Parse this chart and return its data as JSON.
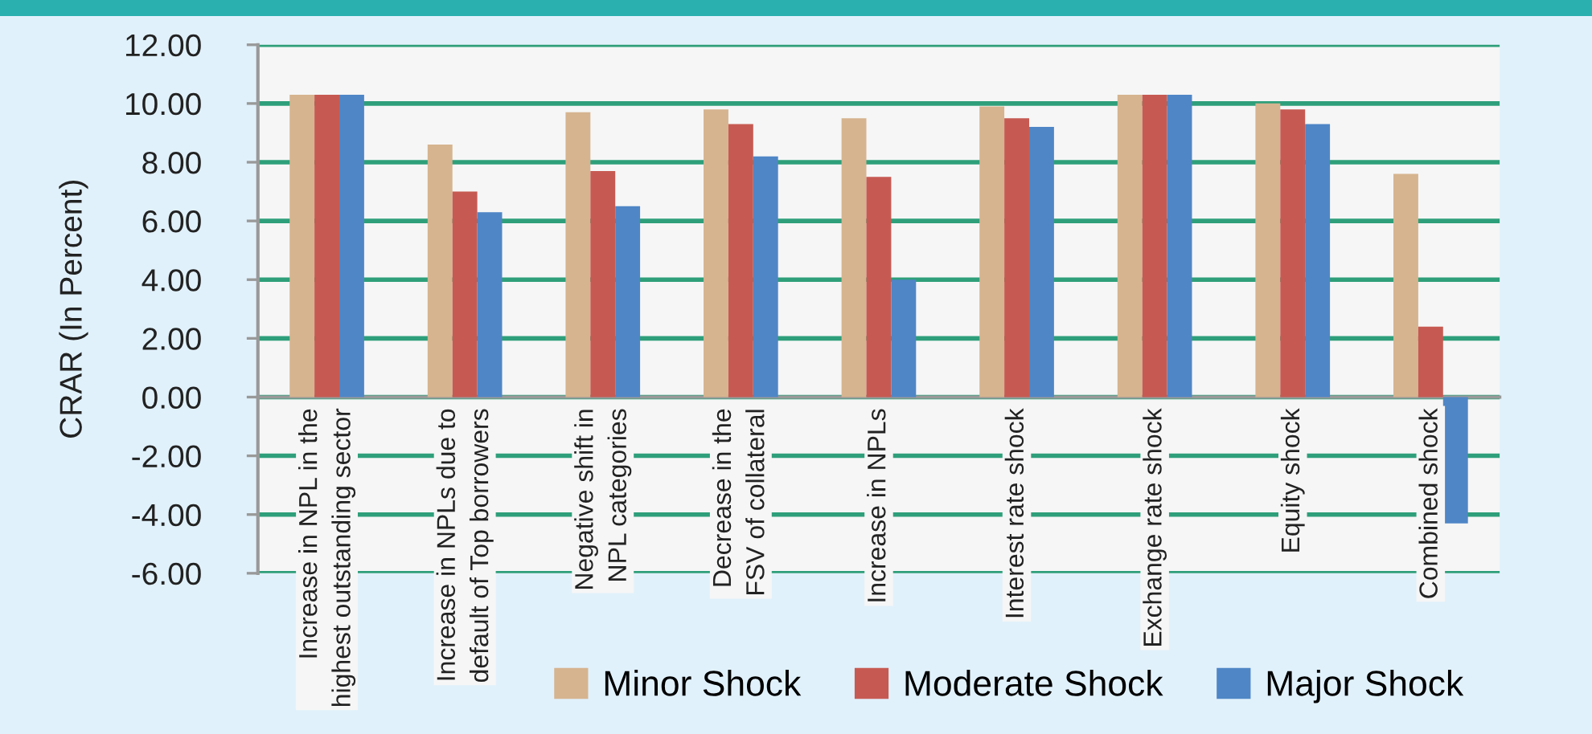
{
  "chart_data": {
    "type": "bar",
    "ylabel": "CRAR (In Percent)",
    "categories": [
      "Increase in NPL in the\nhighest outstanding sector",
      "Increase in NPLs due to\ndefault of Top borrowers",
      "Negative shift in\nNPL categories",
      "Decrease in the\nFSV of collateral",
      "Increase in NPLs",
      "Interest rate shock",
      "Exchange rate shock",
      "Equity shock",
      "Combined shock"
    ],
    "series": [
      {
        "name": "Minor Shock",
        "color": "#d6b48f",
        "values": [
          10.3,
          8.6,
          9.7,
          9.8,
          9.5,
          9.9,
          10.3,
          10.0,
          7.6
        ]
      },
      {
        "name": "Moderate Shock",
        "color": "#c65a52",
        "values": [
          10.3,
          7.0,
          7.7,
          9.3,
          7.5,
          9.5,
          10.3,
          9.8,
          2.4
        ]
      },
      {
        "name": "Major Shock",
        "color": "#4f86c6",
        "values": [
          10.3,
          6.3,
          6.5,
          8.2,
          4.0,
          9.2,
          10.3,
          9.3,
          -4.3
        ]
      }
    ],
    "ylim": [
      -6,
      12
    ],
    "yticks": [
      {
        "value": -6,
        "label": "-6.00"
      },
      {
        "value": -4,
        "label": "-4.00"
      },
      {
        "value": -2,
        "label": "-2.00"
      },
      {
        "value": 0,
        "label": "0.00"
      },
      {
        "value": 2,
        "label": "2.00"
      },
      {
        "value": 4,
        "label": "4.00"
      },
      {
        "value": 6,
        "label": "6.00"
      },
      {
        "value": 8,
        "label": "8.00"
      },
      {
        "value": 10,
        "label": "10.00"
      },
      {
        "value": 12,
        "label": "12.00"
      }
    ],
    "grid": "y",
    "legend": "bottom right"
  }
}
